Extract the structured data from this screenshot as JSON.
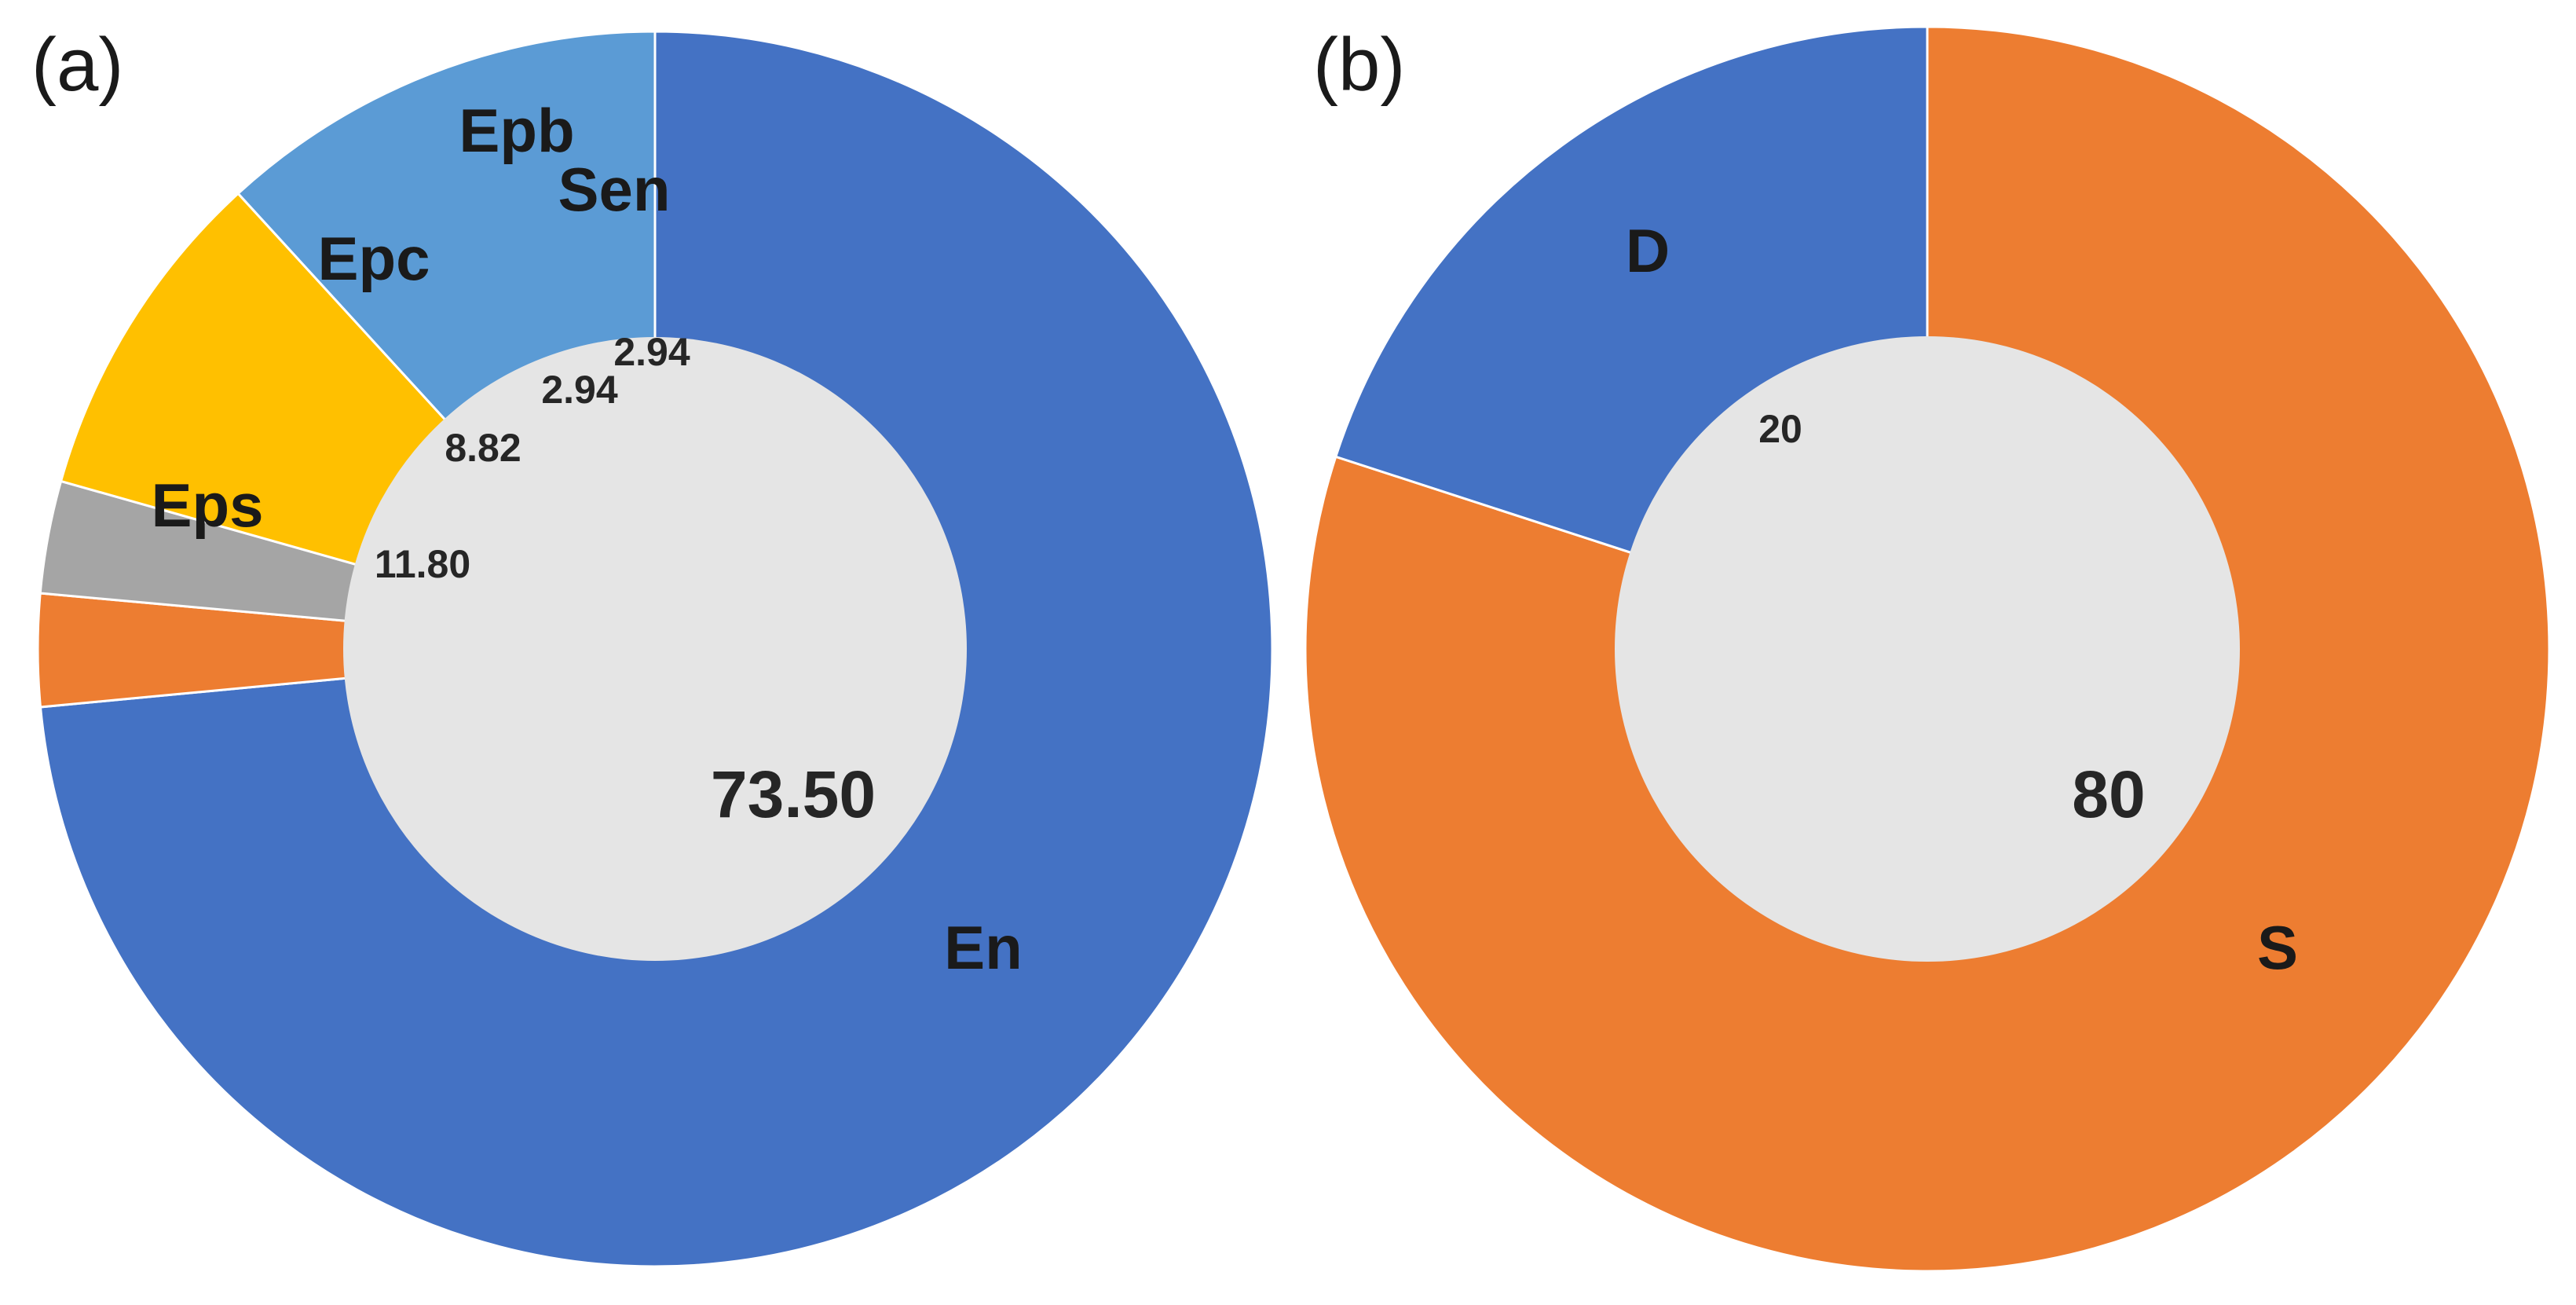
{
  "chart_data": [
    {
      "type": "pie",
      "panel_label": "(a)",
      "categories": [
        "En",
        "Sen",
        "Epb",
        "Epc",
        "Eps"
      ],
      "values": [
        73.5,
        2.94,
        2.94,
        8.82,
        11.8
      ],
      "value_labels": [
        "73.50",
        "2.94",
        "2.94",
        "8.82",
        "11.80"
      ],
      "colors": [
        "#4472C4",
        "#ED7D31",
        "#A5A5A5",
        "#FFC000",
        "#5B9BD5"
      ],
      "center_fill": "#E5E5E5",
      "start": "top",
      "direction": "clockwise"
    },
    {
      "type": "pie",
      "panel_label": "(b)",
      "categories": [
        "S",
        "D"
      ],
      "values": [
        80,
        20
      ],
      "value_labels": [
        "80",
        "20"
      ],
      "colors": [
        "#ED7D31",
        "#4472C4"
      ],
      "center_fill": "#E5E5E5",
      "start": "top",
      "direction": "clockwise"
    }
  ]
}
